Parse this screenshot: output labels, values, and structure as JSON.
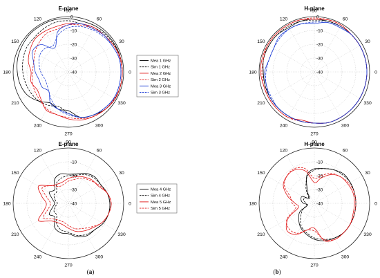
{
  "figure": {
    "subfigure_labels": [
      {
        "open": "(",
        "letter": "a",
        "close": ")"
      },
      {
        "open": "(",
        "letter": "b",
        "close": ")"
      }
    ]
  },
  "chart_data": [
    {
      "type": "polar",
      "title": "E-plane",
      "angle_ticks_deg": [
        0,
        30,
        60,
        90,
        120,
        150,
        180,
        210,
        240,
        270,
        300,
        330
      ],
      "radial_ticks_dB": [
        0,
        -10,
        -20,
        -30,
        -40
      ],
      "rlim": [
        -40,
        0
      ],
      "theta_zero": "right",
      "theta_direction": "counterclockwise",
      "legend": {
        "placement": "right"
      },
      "angles_deg": [
        0,
        15,
        30,
        45,
        60,
        75,
        90,
        105,
        120,
        135,
        150,
        165,
        180,
        195,
        210,
        225,
        240,
        255,
        270,
        285,
        300,
        315,
        330,
        345
      ],
      "series": [
        {
          "name": "Mea 1 GHz",
          "color": "#000000",
          "dash": "solid",
          "values": [
            -1,
            -1,
            -1,
            -1.2,
            -1.5,
            -2,
            -1.5,
            -1,
            -1,
            -1,
            -1.5,
            -2,
            -3,
            -4,
            -6,
            -10,
            -14,
            -12,
            -12,
            -6,
            -4,
            -2,
            -1,
            -1
          ]
        },
        {
          "name": "Sim 1 GHz",
          "color": "#000000",
          "dash": "dashed",
          "values": [
            -1,
            -1,
            -1.5,
            -2,
            -3,
            -4,
            -3,
            -3,
            -4,
            -5,
            -5,
            -6,
            -7,
            -8,
            -9,
            -10,
            -12,
            -14,
            -10,
            -6,
            -4,
            -2,
            -1.5,
            -1
          ]
        },
        {
          "name": "Mea 2 GHz",
          "color": "#e01414",
          "dash": "solid",
          "values": [
            -1,
            -1,
            -2,
            -3,
            -3,
            -4,
            -5,
            -6,
            -6,
            -6,
            -8,
            -10,
            -13,
            -12,
            -14,
            -12,
            -8,
            -8,
            -6,
            -4,
            -3,
            -2,
            -1,
            -1
          ]
        },
        {
          "name": "Sim 2 GHz",
          "color": "#e01414",
          "dash": "dashed",
          "values": [
            -1,
            -1.5,
            -2,
            -3,
            -4,
            -5,
            -6,
            -8,
            -8,
            -10,
            -12,
            -14,
            -14,
            -13,
            -12,
            -11,
            -9,
            -8,
            -7,
            -5,
            -3,
            -2,
            -1.5,
            -1
          ]
        },
        {
          "name": "Mea 3 GHz",
          "color": "#1f3fd6",
          "dash": "solid",
          "values": [
            -2,
            -2,
            -3,
            -3,
            -4,
            -4,
            -6,
            -10,
            -20,
            -12,
            -10,
            -14,
            -16,
            -18,
            -18,
            -20,
            -14,
            -12,
            -10,
            -6,
            -4,
            -3,
            -2,
            -2
          ]
        },
        {
          "name": "Sim 3 GHz",
          "color": "#1f3fd6",
          "dash": "dashed",
          "values": [
            -2,
            -2,
            -3,
            -4,
            -5,
            -6,
            -8,
            -12,
            -18,
            -16,
            -16,
            -18,
            -20,
            -22,
            -22,
            -20,
            -16,
            -12,
            -9,
            -6,
            -4,
            -3,
            -2,
            -2
          ]
        }
      ]
    },
    {
      "type": "polar",
      "title": "H-plane",
      "angle_ticks_deg": [
        0,
        30,
        60,
        90,
        120,
        150,
        180,
        210,
        240,
        270,
        300,
        330
      ],
      "radial_ticks_dB": [
        0,
        -10,
        -20,
        -30,
        -40
      ],
      "rlim": [
        -40,
        0
      ],
      "theta_zero": "right",
      "theta_direction": "counterclockwise",
      "angles_deg": [
        0,
        15,
        30,
        45,
        60,
        75,
        90,
        105,
        120,
        135,
        150,
        165,
        180,
        195,
        210,
        225,
        240,
        255,
        270,
        285,
        300,
        315,
        330,
        345
      ],
      "series": [
        {
          "name": "Mea 1 GHz",
          "color": "#000000",
          "dash": "solid",
          "values": [
            -2,
            -2,
            -2,
            -2,
            -2,
            -2,
            -2,
            -2,
            -3,
            -2,
            -2,
            -2,
            -3,
            -3,
            -3,
            -3,
            -3,
            -3,
            -3,
            -2,
            -2,
            -2,
            -2,
            -2
          ]
        },
        {
          "name": "Sim 1 GHz",
          "color": "#000000",
          "dash": "dashed",
          "values": [
            -2,
            -2,
            -2,
            -2,
            -2,
            -2,
            -3,
            -2,
            -2,
            -2,
            -2,
            -2,
            -3,
            -3,
            -3,
            -3,
            -3,
            -3,
            -3,
            -2,
            -2,
            -2,
            -2,
            -2
          ]
        },
        {
          "name": "Mea 2 GHz",
          "color": "#e01414",
          "dash": "solid",
          "values": [
            -2,
            -2,
            -2,
            -2,
            -1,
            -1,
            -2,
            -1,
            -1,
            -1,
            -1,
            -1,
            -1,
            -2,
            -2,
            -2,
            -2,
            -4,
            -3,
            -2,
            -2,
            -2,
            -2,
            -2
          ]
        },
        {
          "name": "Sim 2 GHz",
          "color": "#e01414",
          "dash": "dashed",
          "values": [
            -2,
            -2,
            -2,
            -2,
            -1,
            -1,
            -1,
            -1,
            -1,
            -1,
            -1,
            -2,
            -2,
            -2,
            -2,
            -2,
            -2,
            -3,
            -3,
            -2,
            -2,
            -2,
            -2,
            -2
          ]
        },
        {
          "name": "Mea 3 GHz",
          "color": "#1f3fd6",
          "dash": "solid",
          "values": [
            -2,
            -2,
            -2,
            -2,
            -3,
            -3,
            -5,
            -4,
            -4,
            -4,
            -6,
            -6,
            -4,
            -4,
            -3,
            -3,
            -3,
            -3,
            -3,
            -2,
            -2,
            -2,
            -2,
            -2
          ]
        },
        {
          "name": "Sim 3 GHz",
          "color": "#1f3fd6",
          "dash": "dashed",
          "values": [
            -2,
            -2,
            -2,
            -2,
            -2,
            -3,
            -4,
            -4,
            -4,
            -5,
            -6,
            -6,
            -5,
            -4,
            -4,
            -3,
            -3,
            -3,
            -3,
            -2,
            -2,
            -2,
            -2,
            -2
          ]
        }
      ]
    },
    {
      "type": "polar",
      "title": "E-plane",
      "angle_ticks_deg": [
        0,
        30,
        60,
        90,
        120,
        150,
        180,
        210,
        240,
        270,
        300,
        330
      ],
      "radial_ticks_dB": [
        -10,
        -20,
        -30,
        -40
      ],
      "rlim": [
        -40,
        0
      ],
      "theta_zero": "right",
      "theta_direction": "counterclockwise",
      "legend": {
        "placement": "right"
      },
      "angles_deg": [
        0,
        15,
        30,
        45,
        60,
        75,
        90,
        105,
        120,
        135,
        150,
        165,
        180,
        195,
        210,
        225,
        240,
        255,
        270,
        285,
        300,
        315,
        330,
        345
      ],
      "series": [
        {
          "name": "Mea 4 GHz",
          "color": "#000000",
          "dash": "solid",
          "values": [
            -10,
            -11,
            -13,
            -13,
            -15,
            -18,
            -19,
            -18,
            -20,
            -26,
            -24,
            -28,
            -30,
            -28,
            -24,
            -26,
            -20,
            -18,
            -18,
            -15,
            -13,
            -13,
            -11,
            -10
          ]
        },
        {
          "name": "Sim 4 GHz",
          "color": "#000000",
          "dash": "dashed",
          "values": [
            -10,
            -11,
            -13,
            -14,
            -16,
            -19,
            -20,
            -21,
            -23,
            -28,
            -28,
            -30,
            -32,
            -30,
            -28,
            -28,
            -23,
            -20,
            -19,
            -16,
            -14,
            -13,
            -11,
            -10
          ]
        },
        {
          "name": "Mea 5 GHz",
          "color": "#e01414",
          "dash": "solid",
          "values": [
            -9,
            -11,
            -15,
            -16,
            -18,
            -20,
            -22,
            -24,
            -24,
            -22,
            -15,
            -20,
            -24,
            -22,
            -15,
            -22,
            -24,
            -24,
            -22,
            -19,
            -17,
            -15,
            -12,
            -10
          ]
        },
        {
          "name": "Sim 5 GHz",
          "color": "#e01414",
          "dash": "dashed",
          "values": [
            -9,
            -11,
            -14,
            -17,
            -19,
            -22,
            -24,
            -26,
            -26,
            -22,
            -18,
            -24,
            -27,
            -25,
            -19,
            -24,
            -26,
            -26,
            -24,
            -21,
            -19,
            -16,
            -12,
            -10
          ]
        }
      ]
    },
    {
      "type": "polar",
      "title": "H-plane",
      "angle_ticks_deg": [
        0,
        30,
        60,
        90,
        120,
        150,
        180,
        210,
        240,
        270,
        300,
        330
      ],
      "radial_ticks_dB": [
        -10,
        -20,
        -30,
        -40
      ],
      "rlim": [
        -40,
        0
      ],
      "theta_zero": "right",
      "theta_direction": "counterclockwise",
      "angles_deg": [
        0,
        15,
        30,
        45,
        60,
        75,
        90,
        105,
        120,
        135,
        150,
        165,
        180,
        195,
        210,
        225,
        240,
        255,
        270,
        285,
        300,
        315,
        330,
        345
      ],
      "series": [
        {
          "name": "Mea 4 GHz",
          "color": "#000000",
          "dash": "solid",
          "values": [
            -10,
            -10,
            -10,
            -10,
            -12,
            -14,
            -15,
            -19,
            -30,
            -35,
            -30,
            -30,
            -32,
            -35,
            -28,
            -24,
            -20,
            -17,
            -14,
            -12,
            -11,
            -10,
            -10,
            -10
          ]
        },
        {
          "name": "Sim 4 GHz",
          "color": "#000000",
          "dash": "dashed",
          "values": [
            -10,
            -10,
            -10,
            -11,
            -12,
            -14,
            -16,
            -20,
            -28,
            -34,
            -32,
            -32,
            -34,
            -34,
            -30,
            -26,
            -21,
            -18,
            -15,
            -13,
            -11,
            -10,
            -10,
            -10
          ]
        },
        {
          "name": "Mea 5 GHz",
          "color": "#e01414",
          "dash": "solid",
          "values": [
            -11,
            -11,
            -12,
            -13,
            -16,
            -21,
            -25,
            -16,
            -12,
            -12,
            -14,
            -20,
            -26,
            -28,
            -18,
            -12,
            -14,
            -20,
            -22,
            -12,
            -10,
            -10,
            -10,
            -11
          ]
        },
        {
          "name": "Sim 5 GHz",
          "color": "#e01414",
          "dash": "dashed",
          "values": [
            -10,
            -10,
            -11,
            -13,
            -15,
            -19,
            -22,
            -14,
            -11,
            -12,
            -15,
            -22,
            -24,
            -26,
            -17,
            -14,
            -15,
            -20,
            -20,
            -13,
            -10,
            -10,
            -10,
            -10
          ]
        }
      ]
    }
  ]
}
